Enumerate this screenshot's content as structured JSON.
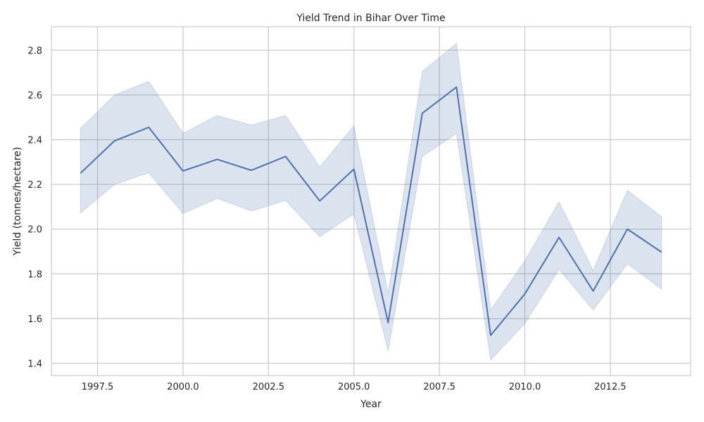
{
  "chart_data": {
    "type": "line",
    "title": "Yield Trend in Bihar Over Time",
    "xlabel": "Year",
    "ylabel": "Yield (tonnes/hectare)",
    "xlim": [
      1996.15,
      2014.85
    ],
    "ylim": [
      1.345,
      2.905
    ],
    "x_ticks": [
      1997.5,
      2000.0,
      2002.5,
      2005.0,
      2007.5,
      2010.0,
      2012.5
    ],
    "x_tick_labels": [
      "1997.5",
      "2000.0",
      "2002.5",
      "2005.0",
      "2007.5",
      "2010.0",
      "2012.5"
    ],
    "y_ticks": [
      1.4,
      1.6,
      1.8,
      2.0,
      2.2,
      2.4,
      2.6,
      2.8
    ],
    "y_tick_labels": [
      "1.4",
      "1.6",
      "1.8",
      "2.0",
      "2.2",
      "2.4",
      "2.6",
      "2.8"
    ],
    "grid": true,
    "series": [
      {
        "x": [
          1997,
          1998,
          1999,
          2000,
          2001,
          2002,
          2003,
          2004,
          2005,
          2006,
          2007,
          2008,
          2009,
          2010,
          2011,
          2012,
          2013,
          2014
        ],
        "values": [
          2.25,
          2.395,
          2.455,
          2.26,
          2.312,
          2.263,
          2.325,
          2.126,
          2.268,
          1.582,
          2.518,
          2.635,
          1.525,
          1.71,
          1.963,
          1.723,
          2.0,
          1.897
        ],
        "ci_lower": [
          2.072,
          2.2,
          2.252,
          2.07,
          2.138,
          2.081,
          2.128,
          1.966,
          2.068,
          1.456,
          2.325,
          2.428,
          1.415,
          1.578,
          1.82,
          1.638,
          1.845,
          1.732
        ],
        "ci_upper": [
          2.45,
          2.6,
          2.66,
          2.428,
          2.508,
          2.465,
          2.508,
          2.278,
          2.462,
          1.712,
          2.705,
          2.83,
          1.637,
          1.858,
          2.122,
          1.815,
          2.173,
          2.055
        ]
      }
    ]
  },
  "colors": {
    "line": "#4c72b0",
    "band": "#4c72b0",
    "grid": "#cccccc",
    "axes": "#cccccc"
  }
}
